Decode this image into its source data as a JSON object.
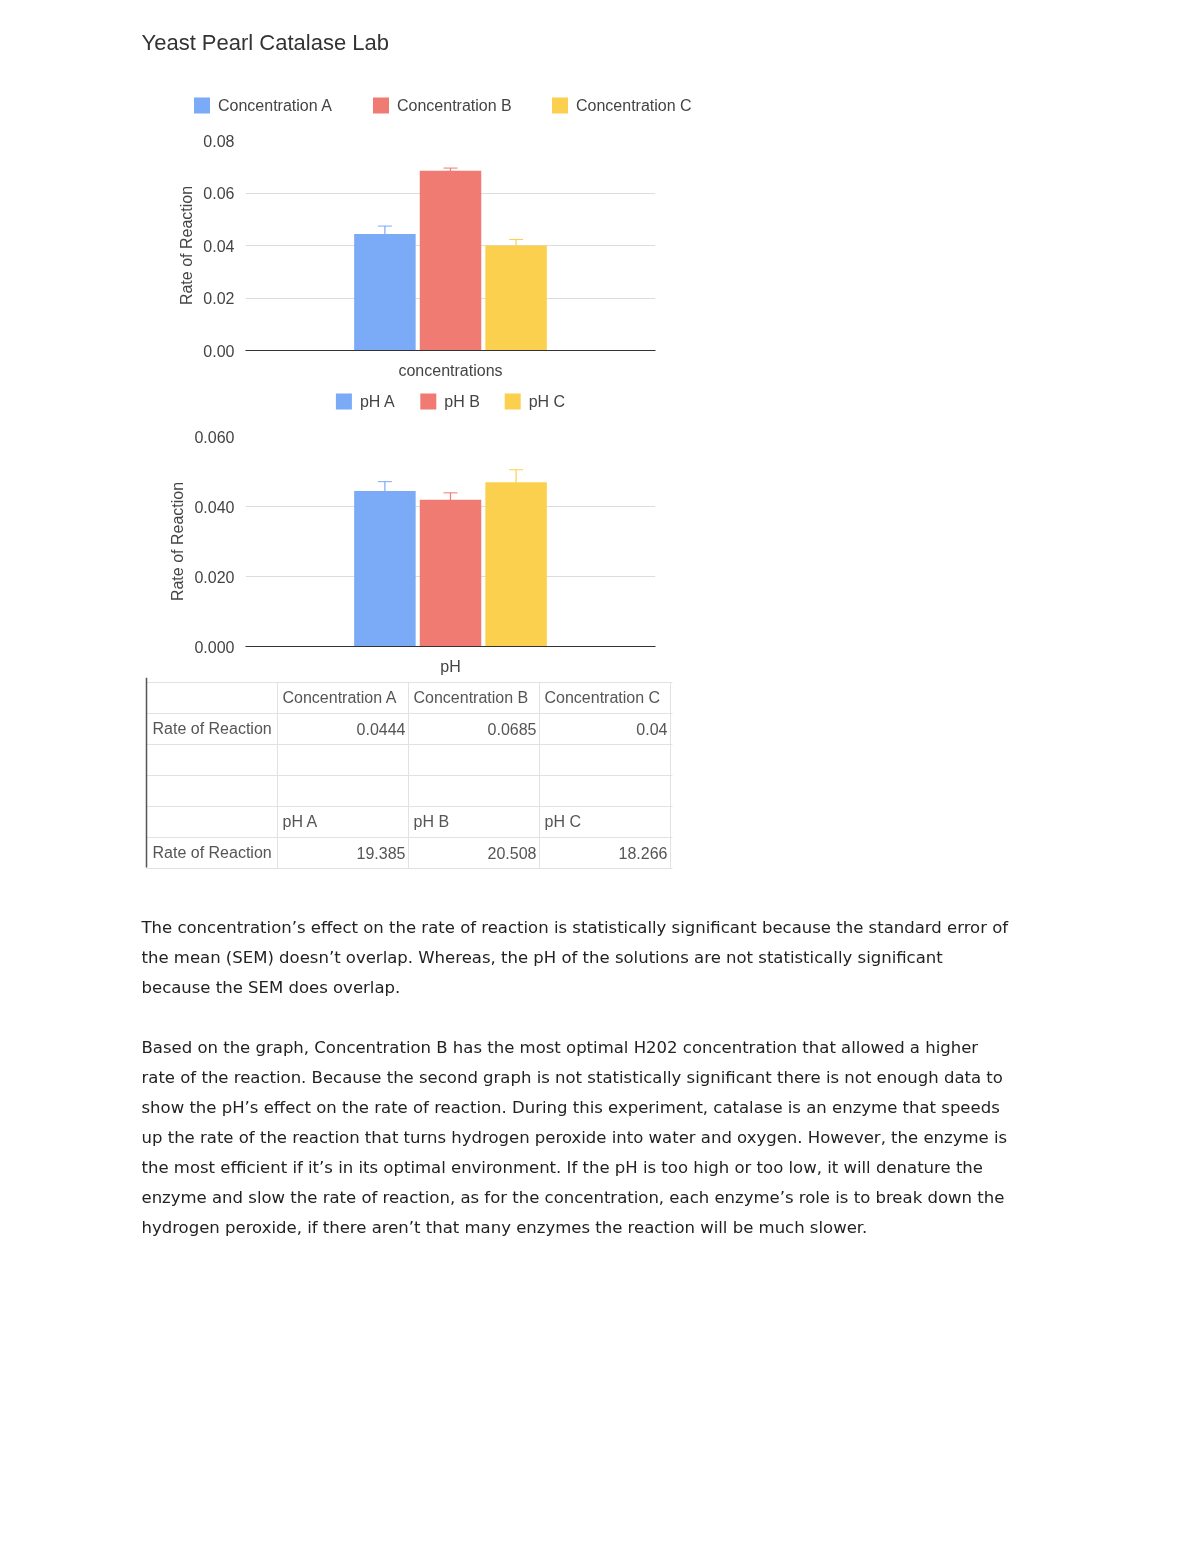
{
  "chart_data": [
    {
      "type": "bar",
      "title": "Yeast Pearl Catalase Lab",
      "xlabel": "concentrations",
      "ylabel": "Rate of Reaction",
      "categories": [
        null
      ],
      "series": [
        {
          "name": "Concentration A",
          "color": "#7baaf7",
          "values": [
            0.0444
          ],
          "errors": [
            0.003
          ]
        },
        {
          "name": "Concentration B",
          "color": "#f07b72",
          "values": [
            0.0685
          ],
          "errors": [
            0.001
          ]
        },
        {
          "name": "Concentration C",
          "color": "#fcd04f",
          "values": [
            0.04
          ],
          "errors": [
            0.0023
          ]
        }
      ],
      "ylim": [
        0,
        0.08
      ],
      "yticks": [
        {
          "value": 0,
          "label": "0.00"
        },
        0.02,
        0.04,
        0.06,
        0.08
      ],
      "grid": "y",
      "legend": "top"
    },
    {
      "type": "bar",
      "xlabel": "pH",
      "ylabel": "Rate of Reaction",
      "categories": [
        null
      ],
      "series": [
        {
          "name": "pH A",
          "color": "#7baaf7",
          "values": [
            0.0444
          ],
          "errors": [
            0.0027
          ]
        },
        {
          "name": "pH B",
          "color": "#f07b72",
          "values": [
            0.0419
          ],
          "errors": [
            0.002
          ]
        },
        {
          "name": "pH C",
          "color": "#fcd04f",
          "values": [
            0.0469
          ],
          "errors": [
            0.0036
          ]
        }
      ],
      "ylim": [
        0,
        0.06
      ],
      "yticks": [
        {
          "value": 0,
          "label": "0.000"
        },
        {
          "value": 0.02,
          "label": "0.020"
        },
        {
          "value": 0.04,
          "label": "0.040"
        },
        {
          "value": 0.06,
          "label": "0.060"
        }
      ],
      "grid": "y",
      "legend": "top"
    },
    {
      "type": "other",
      "annotations": [
        "Concentration A",
        "Concentration B",
        "Concentration C",
        "Rate of Reaction",
        "0.0444",
        "0.0685",
        "0.04",
        "pH A",
        "pH B",
        "pH C",
        "Rate of Reaction",
        "19.385",
        "20.508",
        "18.266",
        "The concentration’s effect on the rate of reaction is statistically significant because the standard error of",
        "the mean (SEM) doesn’t overlap. Whereas, the pH of the solutions are not statistically significant",
        "because the SEM does overlap.",
        "Based on the graph, Concentration B has the most optimal H202 concentration that allowed a higher",
        "rate of the reaction. Because the second graph is not statistically significant there is not enough data to",
        "show the pH’s effect on the rate of reaction. During this experiment, catalase is an enzyme that speeds",
        "up the rate of the reaction that turns hydrogen peroxide into water and oxygen. However, the enzyme is",
        "the most efficient if it’s in its optimal environment. If the pH is too high or too low, it will denature the",
        "enzyme and slow the rate of reaction, as for the concentration, each enzyme’s role is to break down the",
        "hydrogen peroxide, if there aren’t that many enzymes the reaction will be much slower."
      ]
    }
  ]
}
